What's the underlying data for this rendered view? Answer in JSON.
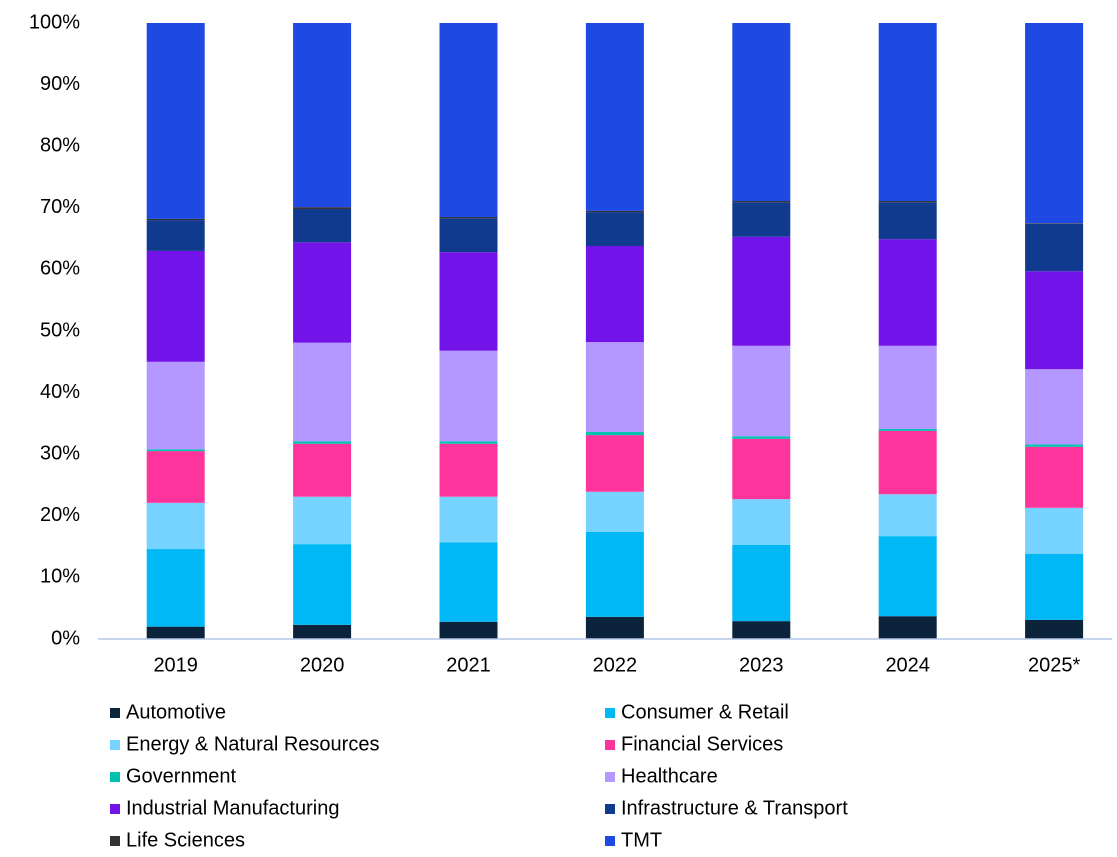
{
  "chart_data": {
    "type": "stacked_bar",
    "categories": [
      "2019",
      "2020",
      "2021",
      "2022",
      "2023",
      "2024",
      "2025*"
    ],
    "series": [
      {
        "name": "Automotive",
        "color": "#0c233c",
        "values": [
          2.0,
          2.3,
          2.8,
          3.6,
          2.9,
          3.7,
          3.1
        ]
      },
      {
        "name": "Consumer & Retail",
        "color": "#00b8f5",
        "values": [
          12.6,
          13.1,
          12.9,
          13.8,
          12.4,
          13.0,
          10.7
        ]
      },
      {
        "name": "Energy & Natural Resources",
        "color": "#76d3ff",
        "values": [
          7.5,
          7.7,
          7.4,
          6.5,
          7.4,
          6.8,
          7.5
        ]
      },
      {
        "name": "Financial Services",
        "color": "#fd349c",
        "values": [
          8.4,
          8.6,
          8.6,
          9.2,
          9.8,
          10.3,
          9.9
        ]
      },
      {
        "name": "Government",
        "color": "#00c0ae",
        "values": [
          0.3,
          0.4,
          0.4,
          0.5,
          0.4,
          0.3,
          0.4
        ]
      },
      {
        "name": "Healthcare",
        "color": "#b497ff",
        "values": [
          14.2,
          16.0,
          14.7,
          14.6,
          14.7,
          13.5,
          12.2
        ]
      },
      {
        "name": "Industrial Manufacturing",
        "color": "#7213ea",
        "values": [
          18.0,
          16.3,
          16.0,
          15.6,
          17.7,
          17.3,
          15.9
        ]
      },
      {
        "name": "Infrastructure & Transport",
        "color": "#0f3a8e",
        "values": [
          5.0,
          5.4,
          5.5,
          5.5,
          5.6,
          6.0,
          7.7
        ]
      },
      {
        "name": "Life Sciences",
        "color": "#333333",
        "values": [
          0.2,
          0.3,
          0.2,
          0.2,
          0.2,
          0.2,
          0.1
        ]
      },
      {
        "name": "TMT",
        "color": "#1e49e2",
        "values": [
          31.8,
          29.9,
          31.5,
          30.5,
          28.9,
          28.9,
          32.5
        ]
      }
    ],
    "ylim": [
      0,
      100
    ],
    "yticks": [
      {
        "value": 0,
        "label": "0%"
      },
      {
        "value": 10,
        "label": "10%"
      },
      {
        "value": 20,
        "label": "20%"
      },
      {
        "value": 30,
        "label": "30%"
      },
      {
        "value": 40,
        "label": "40%"
      },
      {
        "value": 50,
        "label": "50%"
      },
      {
        "value": 60,
        "label": "60%"
      },
      {
        "value": 70,
        "label": "70%"
      },
      {
        "value": 80,
        "label": "80%"
      },
      {
        "value": 90,
        "label": "90%"
      },
      {
        "value": 100,
        "label": "100%"
      }
    ],
    "grid": false
  }
}
